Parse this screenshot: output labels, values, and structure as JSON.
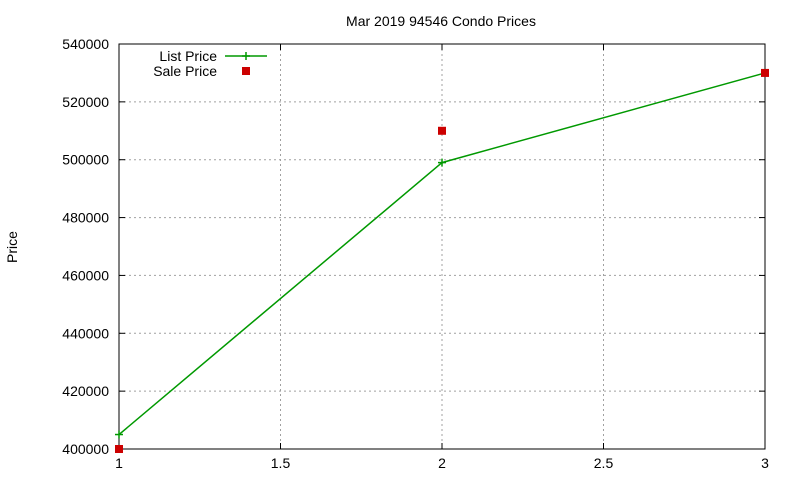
{
  "chart_data": {
    "type": "line",
    "title": "Mar 2019 94546 Condo Prices",
    "xlabel": "",
    "ylabel": "Price",
    "xlim": [
      1,
      3
    ],
    "ylim": [
      400000,
      540000
    ],
    "xticks": [
      1,
      1.5,
      2,
      2.5,
      3
    ],
    "xtick_labels": [
      "1",
      "1.5",
      "2",
      "2.5",
      "3"
    ],
    "yticks": [
      400000,
      420000,
      440000,
      460000,
      480000,
      500000,
      520000,
      540000
    ],
    "ytick_labels": [
      "400000",
      "420000",
      "440000",
      "460000",
      "480000",
      "500000",
      "520000",
      "540000"
    ],
    "grid": true,
    "legend_position": "top-left",
    "series": [
      {
        "name": "List Price",
        "style": "line-plus",
        "color": "#009900",
        "points": [
          [
            1,
            405000
          ],
          [
            2,
            499000
          ],
          [
            3,
            530000
          ]
        ]
      },
      {
        "name": "Sale Price",
        "style": "square",
        "color": "#cc0000",
        "points": [
          [
            1,
            400000
          ],
          [
            2,
            510000
          ],
          [
            3,
            530000
          ]
        ]
      }
    ]
  }
}
